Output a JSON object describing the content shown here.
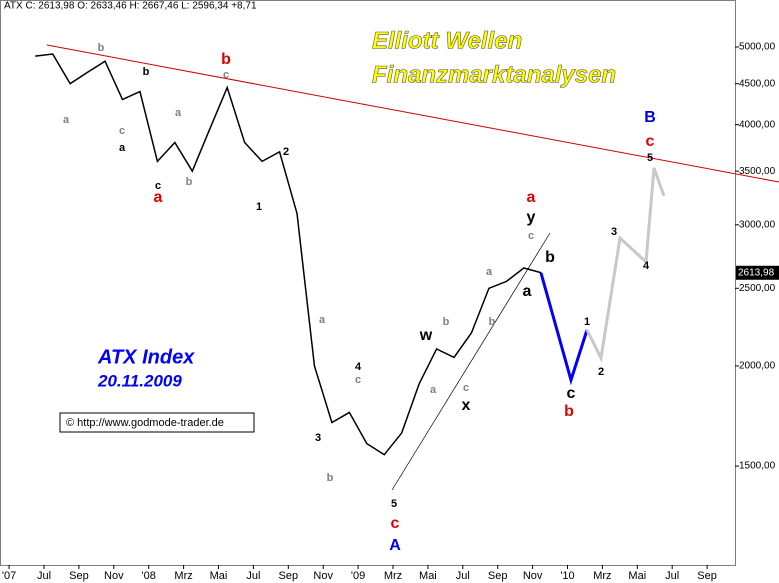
{
  "chart_data": {
    "type": "line",
    "header": "ATX C: 2613,98 O: 2633,46 H: 2667,46 L: 2596,34 +8,71",
    "title": "Elliott Wellen",
    "subtitle": "Finanzmarktanalysen",
    "index_name": "ATX Index",
    "date": "20.11.2009",
    "source": "© http://www.godmode-trader.de",
    "log_scale": true,
    "grid": false,
    "series": [
      {
        "name": "ATX",
        "color": "#000000",
        "x": [
          "2007-06",
          "2007-07",
          "2007-08",
          "2007-09",
          "2007-10",
          "2007-11",
          "2007-12",
          "2008-01",
          "2008-02",
          "2008-03",
          "2008-04",
          "2008-05",
          "2008-06",
          "2008-07",
          "2008-08",
          "2008-09",
          "2008-10",
          "2008-11",
          "2008-12",
          "2009-01",
          "2009-02",
          "2009-03",
          "2009-04",
          "2009-05",
          "2009-06",
          "2009-07",
          "2009-08",
          "2009-09",
          "2009-10",
          "2009-11"
        ],
        "values": [
          4870,
          4900,
          4500,
          4650,
          4800,
          4300,
          4400,
          3600,
          3800,
          3500,
          3950,
          4450,
          3800,
          3600,
          3700,
          3100,
          2000,
          1700,
          1750,
          1600,
          1550,
          1650,
          1900,
          2100,
          2050,
          2200,
          2500,
          2550,
          2650,
          2613.98
        ]
      }
    ],
    "last_price_label": "2613,98",
    "ylim": [
      1129,
      5723
    ],
    "yticks": [
      {
        "value": 1500,
        "label": "1500,00"
      },
      {
        "value": 2000,
        "label": "2000,00"
      },
      {
        "value": 2500,
        "label": "2500,00"
      },
      {
        "value": 3000,
        "label": "3000,00"
      },
      {
        "value": 3500,
        "label": "3500,00"
      },
      {
        "value": 4000,
        "label": "4000,00"
      },
      {
        "value": 4500,
        "label": "4500,00"
      },
      {
        "value": 5000,
        "label": "5000,00"
      }
    ],
    "xticks": [
      {
        "value": "2007-05",
        "label": "'07"
      },
      {
        "value": "2007-07",
        "label": "Jul"
      },
      {
        "value": "2007-09",
        "label": "Sep"
      },
      {
        "value": "2007-11",
        "label": "Nov"
      },
      {
        "value": "2008-01",
        "label": "'08"
      },
      {
        "value": "2008-03",
        "label": "Mrz"
      },
      {
        "value": "2008-05",
        "label": "Mai"
      },
      {
        "value": "2008-07",
        "label": "Jul"
      },
      {
        "value": "2008-09",
        "label": "Sep"
      },
      {
        "value": "2008-11",
        "label": "Nov"
      },
      {
        "value": "2009-01",
        "label": "'09"
      },
      {
        "value": "2009-03",
        "label": "Mrz"
      },
      {
        "value": "2009-05",
        "label": "Mai"
      },
      {
        "value": "2009-07",
        "label": "Jul"
      },
      {
        "value": "2009-09",
        "label": "Sep"
      },
      {
        "value": "2009-11",
        "label": "Nov"
      },
      {
        "value": "2010-01",
        "label": "'10"
      },
      {
        "value": "2010-03",
        "label": "Mrz"
      },
      {
        "value": "2010-05",
        "label": "Mai"
      },
      {
        "value": "2010-07",
        "label": "Jul"
      },
      {
        "value": "2010-09",
        "label": "Sep"
      }
    ],
    "annotations": [
      "b",
      "a",
      "b",
      "c",
      "a",
      "c",
      "a",
      "b",
      "c",
      "a",
      "b",
      "2",
      "1",
      "a",
      "4",
      "c",
      "3",
      "b",
      "5",
      "c",
      "A",
      "w",
      "b",
      "a",
      "c",
      "x",
      "b",
      "a",
      "a",
      "y",
      "c",
      "b",
      "a",
      "c",
      "b",
      "1",
      "2",
      "3",
      "4",
      "5",
      "c",
      "B"
    ]
  }
}
